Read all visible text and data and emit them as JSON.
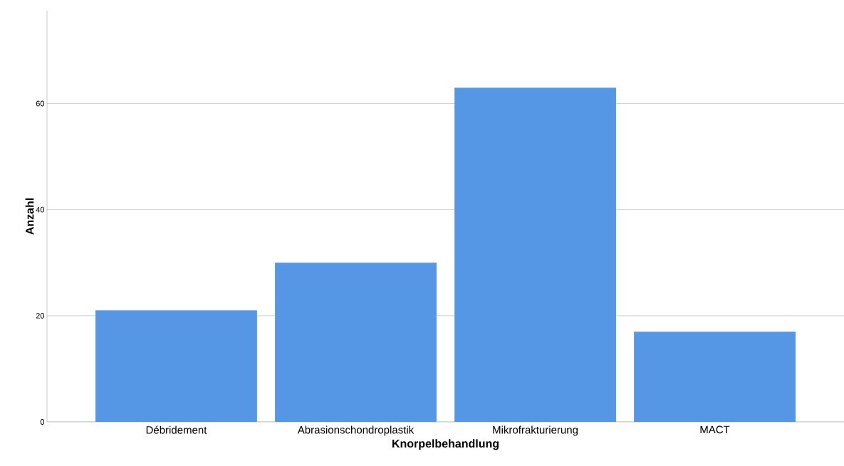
{
  "chart_data": {
    "type": "bar",
    "xlabel": "Knorpelbehandlung",
    "ylabel": "Anzahl",
    "categories": [
      "Débridement",
      "Abrasionschondroplastik",
      "Mikrofrakturierung",
      "MACT"
    ],
    "values": [
      21,
      30,
      63,
      17
    ],
    "color": "#5596e5",
    "ylim": [
      0,
      77.5
    ],
    "yticks": [
      0,
      20,
      40,
      60
    ],
    "grid": "y"
  }
}
